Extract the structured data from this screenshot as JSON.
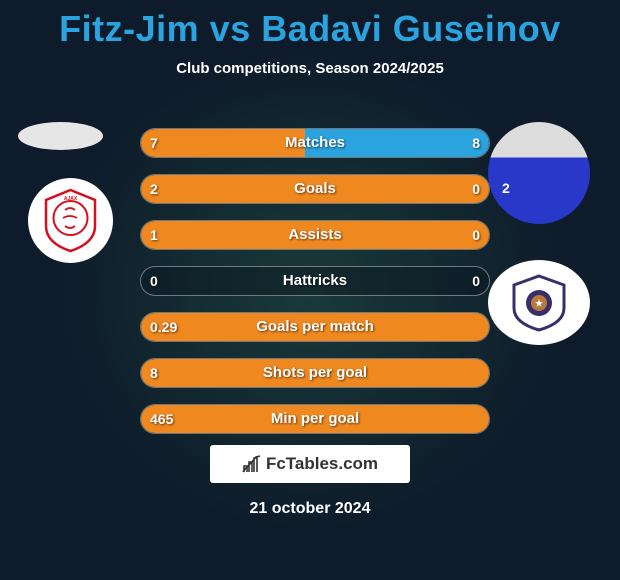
{
  "title": "Fitz-Jim vs Badavi Guseinov",
  "subtitle": "Club competitions, Season 2024/2025",
  "date": "21 october 2024",
  "fctables_label": "FcTables.com",
  "colors": {
    "title": "#2aa3de",
    "bar_left": "#f08820",
    "bar_right": "#2aa3de",
    "track_border": "rgba(255,255,255,0.4)",
    "track_bg": "rgba(10,20,30,0.4)",
    "bg_center": "#1a3a3a",
    "bg_outer": "#0d1b2a",
    "text": "#ffffff"
  },
  "rows": [
    {
      "label": "Matches",
      "left_val": "7",
      "right_val": "8",
      "left_pct": 47,
      "right_pct": 53
    },
    {
      "label": "Goals",
      "left_val": "2",
      "right_val": "0",
      "left_pct": 100,
      "right_pct": 0
    },
    {
      "label": "Assists",
      "left_val": "1",
      "right_val": "0",
      "left_pct": 100,
      "right_pct": 0
    },
    {
      "label": "Hattricks",
      "left_val": "0",
      "right_val": "0",
      "left_pct": 0,
      "right_pct": 0
    },
    {
      "label": "Goals per match",
      "left_val": "0.29",
      "right_val": "",
      "left_pct": 100,
      "right_pct": 0
    },
    {
      "label": "Shots per goal",
      "left_val": "8",
      "right_val": "",
      "left_pct": 100,
      "right_pct": 0
    },
    {
      "label": "Min per goal",
      "left_val": "465",
      "right_val": "",
      "left_pct": 100,
      "right_pct": 0
    }
  ],
  "player_left": {
    "name": "Fitz-Jim",
    "club": "Ajax"
  },
  "player_right": {
    "name": "Badavi Guseinov",
    "club": "Qarabag",
    "shirt_number": "2"
  }
}
